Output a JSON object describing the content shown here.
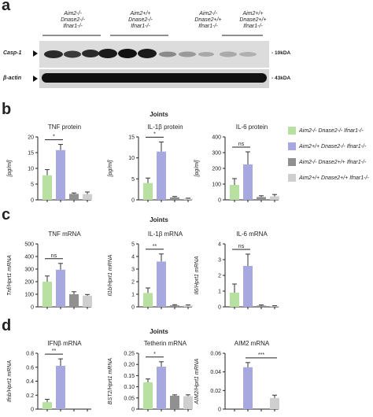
{
  "panels": {
    "a": {
      "letter": "a",
      "groups": [
        [
          "Aim2-/-",
          "Dnase2-/-",
          "Ifnar1-/-"
        ],
        [
          "Aim2+/+",
          "Dnase2-/-",
          "Ifnar1-/-"
        ],
        [
          "Aim2-/-",
          "Dnase2+/+",
          "Ifnar1-/-"
        ],
        [
          "Aim2+/+",
          "Dnase2+/+",
          "Ifnar1-/-"
        ]
      ],
      "blots": [
        {
          "label": "Casp-1",
          "size": "- 10kDA"
        },
        {
          "label": "β-actin",
          "size": "- 43kDA"
        }
      ]
    },
    "b": {
      "letter": "b",
      "title": "Joints"
    },
    "c": {
      "letter": "c",
      "title": "Joints"
    },
    "d": {
      "letter": "d",
      "title": "Joints"
    }
  },
  "legend": {
    "colors": [
      "#b8e0a0",
      "#a8a8e0",
      "#909090",
      "#cfcfcf"
    ],
    "entries": [
      "Aim2-/-  Dnase2-/-  Ifnar1-/-",
      "Aim2+/+  Dnase2-/-  Ifnar1-/-",
      "Aim2-/-  Dnase2+/+  Ifnar1-/-",
      "Aim2+/+  Dnase2+/+  Ifnar1-/-"
    ]
  },
  "chart_data": [
    {
      "type": "bar",
      "title": "TNF protein",
      "ylabel": "[pg/ml]",
      "ylim": [
        0,
        20
      ],
      "yticks": [
        0,
        5,
        10,
        15,
        20
      ],
      "values": [
        7.8,
        15.8,
        1.9,
        1.8
      ],
      "errors": [
        1.8,
        1.8,
        0.3,
        0.7
      ],
      "sig": {
        "text": "*",
        "from": 0,
        "to": 1
      }
    },
    {
      "type": "bar",
      "title": "IL-1β protein",
      "ylabel": "[pg/ml]",
      "ylim": [
        0,
        15
      ],
      "yticks": [
        0,
        5,
        10,
        15
      ],
      "values": [
        4.0,
        11.5,
        0.6,
        0.3
      ],
      "errors": [
        1.2,
        2.3,
        0.2,
        0.1
      ],
      "sig": {
        "text": "*",
        "from": 0,
        "to": 1
      }
    },
    {
      "type": "bar",
      "title": "IL-6 protein",
      "ylabel": "[pg/ml]",
      "ylim": [
        0,
        400
      ],
      "yticks": [
        0,
        100,
        200,
        300,
        400
      ],
      "values": [
        95,
        225,
        18,
        22
      ],
      "errors": [
        40,
        80,
        8,
        12
      ],
      "sig": {
        "text": "ns",
        "from": 0,
        "to": 1
      }
    },
    {
      "type": "bar",
      "title": "TNF mRNA",
      "ylabel": "Tnf/Hprt1 mRNA",
      "ylim": [
        0,
        500
      ],
      "yticks": [
        0,
        100,
        200,
        300,
        400,
        500
      ],
      "values": [
        200,
        295,
        100,
        88
      ],
      "errors": [
        45,
        50,
        20,
        10
      ],
      "sig": {
        "text": "ns",
        "from": 0,
        "to": 1
      }
    },
    {
      "type": "bar",
      "title": "IL-1β mRNA",
      "ylabel": "Il1b/Hprt1 mRNA",
      "ylim": [
        0,
        5
      ],
      "yticks": [
        0,
        1,
        2,
        3,
        4,
        5
      ],
      "values": [
        1.1,
        3.6,
        0.12,
        0.1
      ],
      "errors": [
        0.4,
        0.6,
        0.05,
        0.05
      ],
      "sig": {
        "text": "**",
        "from": 0,
        "to": 1
      }
    },
    {
      "type": "bar",
      "title": "IL-6 mRNA",
      "ylabel": "Il6/Hprt1 mRNA",
      "ylim": [
        0,
        4
      ],
      "yticks": [
        0,
        1,
        2,
        3,
        4
      ],
      "values": [
        0.9,
        2.6,
        0.08,
        0.05
      ],
      "errors": [
        0.55,
        0.75,
        0.04,
        0.02
      ],
      "sig": {
        "text": "ns",
        "from": 0,
        "to": 1
      }
    },
    {
      "type": "bar",
      "title": "IFNβ mRNA",
      "ylabel": "Ifnb/Hprt1 mRNA",
      "ylim": [
        0,
        0.8
      ],
      "yticks": [
        0,
        0.2,
        0.4,
        0.6,
        0.8
      ],
      "tickDecimals": 1,
      "values": [
        0.1,
        0.62,
        0,
        0
      ],
      "errors": [
        0.04,
        0.1,
        0,
        0
      ],
      "sig": {
        "text": "**",
        "from": 0,
        "to": 1
      }
    },
    {
      "type": "bar",
      "title": "Tetherin mRNA",
      "ylabel": "BST2/Hprt1 mRNA",
      "ylim": [
        0,
        0.25
      ],
      "yticks": [
        0,
        0.05,
        0.1,
        0.15,
        0.2,
        0.25
      ],
      "tickDecimals": 2,
      "values": [
        0.12,
        0.19,
        0.06,
        0.058
      ],
      "errors": [
        0.015,
        0.022,
        0.004,
        0.006
      ],
      "sig": {
        "text": "*",
        "from": 0,
        "to": 1
      }
    },
    {
      "type": "bar",
      "title": "AIM2 mRNA",
      "ylabel": "AIM2/Hprt1 mRNA",
      "ylim": [
        0,
        0.06
      ],
      "yticks": [
        0,
        0.02,
        0.04,
        0.06
      ],
      "tickDecimals": 2,
      "values": [
        0,
        0.045,
        0,
        0.012
      ],
      "errors": [
        0,
        0.005,
        0,
        0.003
      ],
      "sig": {
        "text": "***",
        "from": 1,
        "to": 3
      }
    }
  ]
}
